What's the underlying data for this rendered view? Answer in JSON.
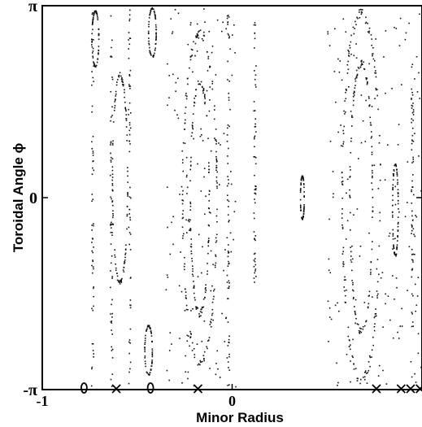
{
  "chart_data": {
    "type": "scatter",
    "title": "",
    "xlabel": "Minor Radius",
    "ylabel": "Toroidal Angle ϕ",
    "xlim": [
      -1,
      1
    ],
    "ylim": [
      -3.14159,
      3.14159
    ],
    "grid": false,
    "x_ticks": [
      {
        "value": -1,
        "label": "-1"
      },
      {
        "value": 0,
        "label": "0"
      }
    ],
    "y_ticks": [
      {
        "value": 3.14159,
        "label": "π"
      },
      {
        "value": 0,
        "label": "0"
      },
      {
        "value": -3.14159,
        "label": "-π"
      }
    ],
    "markers": [
      {
        "symbol": "O",
        "x": -0.78,
        "y": -3.14159
      },
      {
        "symbol": "X",
        "x": -0.61,
        "y": -3.14159
      },
      {
        "symbol": "O",
        "x": -0.43,
        "y": -3.14159
      },
      {
        "symbol": "X",
        "x": -0.18,
        "y": -3.14159
      },
      {
        "symbol": "X",
        "x": 0.76,
        "y": -3.14159
      },
      {
        "symbol": "X",
        "x": 0.89,
        "y": -3.14159
      },
      {
        "symbol": "X",
        "x": 0.94,
        "y": -3.14159
      },
      {
        "symbol": "X",
        "x": 0.99,
        "y": -3.14159
      }
    ],
    "structures": [
      {
        "kind": "chain",
        "x": -0.735,
        "y_range": [
          -3.1,
          3.1
        ]
      },
      {
        "kind": "island",
        "x": -0.72,
        "y": 2.6,
        "half_width": 0.018,
        "half_height": 0.45
      },
      {
        "kind": "chain",
        "x": -0.635,
        "y_range": [
          -3.1,
          3.1
        ]
      },
      {
        "kind": "island",
        "x": -0.59,
        "y": 0.3,
        "half_width": 0.04,
        "half_height": 1.7
      },
      {
        "kind": "chain",
        "x": -0.54,
        "y_range": [
          -3.1,
          3.1
        ]
      },
      {
        "kind": "island",
        "x": -0.42,
        "y": 2.7,
        "half_width": 0.02,
        "half_height": 0.4
      },
      {
        "kind": "island",
        "x": -0.44,
        "y": -2.5,
        "half_width": 0.02,
        "half_height": 0.4
      },
      {
        "kind": "band",
        "x_range": [
          -0.35,
          0.02
        ],
        "y_range": [
          -3.1,
          3.1
        ]
      },
      {
        "kind": "island",
        "x": -0.17,
        "y": 0.0,
        "half_width": 0.09,
        "half_height": 2.7
      },
      {
        "kind": "island",
        "x": -0.17,
        "y": 0.0,
        "half_width": 0.05,
        "half_height": 1.9
      },
      {
        "kind": "chain",
        "x": -0.02,
        "y_range": [
          -3.1,
          3.1
        ]
      },
      {
        "kind": "chain",
        "x": 0.12,
        "y_range": [
          -1.4,
          2.9
        ]
      },
      {
        "kind": "island",
        "x": 0.37,
        "y": 0.0,
        "half_width": 0.01,
        "half_height": 0.35
      },
      {
        "kind": "band",
        "x_range": [
          0.5,
          1.0
        ],
        "y_range": [
          -3.1,
          3.1
        ]
      },
      {
        "kind": "island",
        "x": 0.68,
        "y": 0.0,
        "half_width": 0.1,
        "half_height": 3.0
      },
      {
        "kind": "island",
        "x": 0.68,
        "y": 0.0,
        "half_width": 0.06,
        "half_height": 2.2
      },
      {
        "kind": "island",
        "x": 0.86,
        "y": -0.2,
        "half_width": 0.015,
        "half_height": 0.75
      },
      {
        "kind": "chain",
        "x": 0.95,
        "y_range": [
          -2.2,
          2.2
        ]
      }
    ]
  }
}
